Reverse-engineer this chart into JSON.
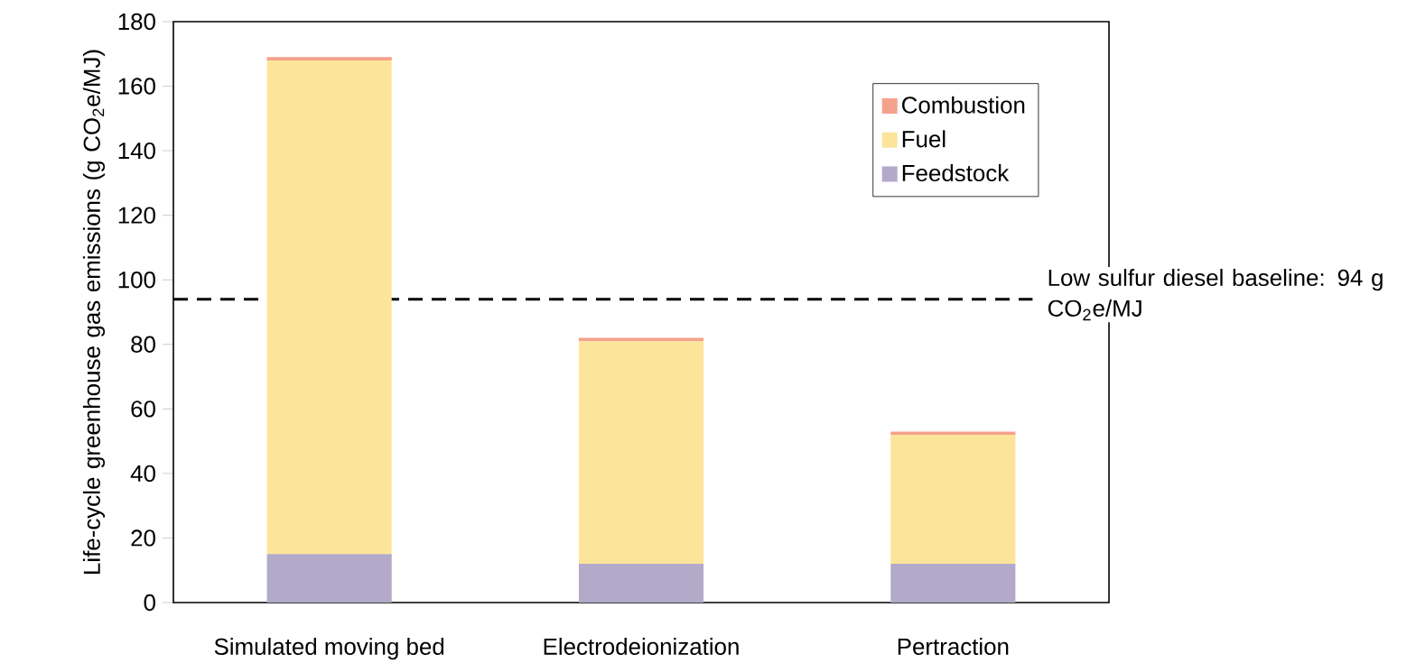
{
  "chart_data": {
    "type": "bar",
    "stacked": true,
    "ylabel": "Life-cycle greenhouse gas emissions (g  CO$_{2}$e/MJ)",
    "categories": [
      "Simulated moving bed",
      "Electrodeionization",
      "Pertraction"
    ],
    "series": [
      {
        "name": "Feedstock",
        "color": "#b3a9c9",
        "values": [
          15,
          12,
          12
        ]
      },
      {
        "name": "Fuel",
        "color": "#fce59a",
        "values": [
          153,
          69,
          40
        ]
      },
      {
        "name": "Combustion",
        "color": "#f4a28c",
        "values": [
          1,
          1,
          1
        ]
      }
    ],
    "ylim": [
      0,
      180
    ],
    "yticks": [
      0,
      20,
      40,
      60,
      80,
      100,
      120,
      140,
      160,
      180
    ],
    "ref_lines": [
      {
        "axis": "y",
        "value": 94,
        "label": "Low sulfur diesel baseline: 94 g CO$_{2}$e/MJ",
        "color": "#000000",
        "line_style": "dashed"
      }
    ],
    "grid": false,
    "legend": "top right"
  }
}
